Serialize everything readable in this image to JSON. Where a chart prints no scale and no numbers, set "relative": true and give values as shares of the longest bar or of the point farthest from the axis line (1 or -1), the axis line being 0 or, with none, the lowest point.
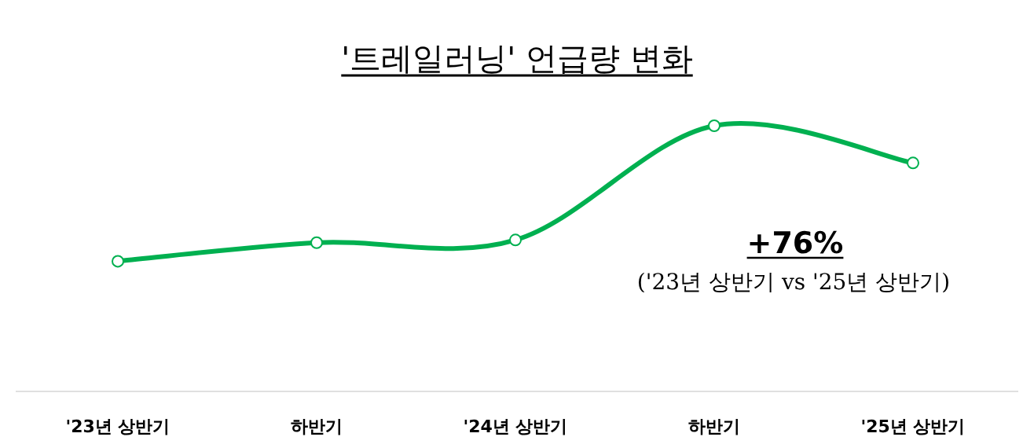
{
  "chart_data": {
    "type": "line",
    "title": "'트레일러닝' 언급량 변화",
    "relative": true,
    "categories": [
      "'23년 상반기",
      "하반기",
      "'24년 상반기",
      "하반기",
      "'25년 상반기"
    ],
    "series": [
      {
        "color": "#00b050",
        "values": [
          0.49,
          0.56,
          0.57,
          1,
          0.86
        ]
      }
    ],
    "marker": "circle",
    "annotations": [
      "+76%",
      "('23년 상반기 vs '25년 상반기)"
    ]
  }
}
